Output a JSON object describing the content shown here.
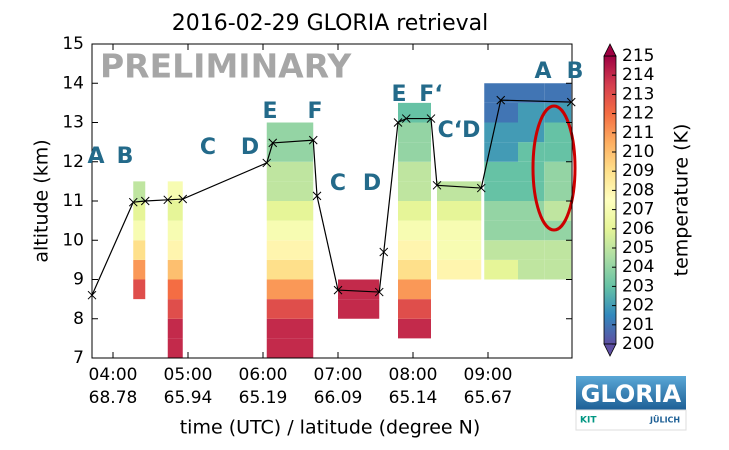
{
  "chart_data": {
    "type": "curtain",
    "title": "2016-02-29 GLORIA retrieval",
    "watermark": "PRELIMINARY",
    "xlabel": "time (UTC) / latitude (degree N)",
    "ylabel": "altitude (km)",
    "xlim": [
      3.72,
      10.12
    ],
    "ylim": [
      7,
      15
    ],
    "yticks": [
      7,
      8,
      9,
      10,
      11,
      12,
      13,
      14,
      15
    ],
    "xticks": [
      {
        "value": 4,
        "label": "04:00"
      },
      {
        "value": 5,
        "label": "05:00"
      },
      {
        "value": 6,
        "label": "06:00"
      },
      {
        "value": 7,
        "label": "07:00"
      },
      {
        "value": 8,
        "label": "08:00"
      },
      {
        "value": 9,
        "label": "09:00"
      }
    ],
    "xtick_latitudes": [
      "68.78",
      "65.94",
      "65.19",
      "66.09",
      "65.14",
      "65.67"
    ],
    "flight_track": {
      "color": "#000000",
      "x": [
        3.72,
        4.27,
        4.43,
        4.73,
        4.93,
        6.05,
        6.13,
        6.67,
        6.72,
        7.0,
        7.55,
        7.61,
        7.8,
        7.91,
        8.24,
        8.32,
        8.91,
        9.17,
        10.11
      ],
      "y": [
        8.6,
        10.97,
        11.0,
        11.03,
        11.05,
        11.97,
        12.48,
        12.55,
        11.13,
        8.73,
        8.68,
        9.7,
        13.0,
        13.1,
        13.1,
        11.4,
        11.33,
        13.57,
        13.52
      ]
    },
    "heatmap": {
      "y_edges": [
        7,
        7.5,
        8,
        8.5,
        9,
        9.5,
        10,
        10.5,
        11,
        11.5,
        12,
        12.5,
        13,
        13.5,
        14
      ],
      "columns": [
        {
          "x": [
            4.27,
            4.43
          ],
          "z": [
            null,
            null,
            null,
            213,
            211,
            209,
            207,
            206,
            205,
            null,
            null,
            null,
            null,
            null
          ]
        },
        {
          "x": [
            4.73,
            4.93
          ],
          "z": [
            214,
            214,
            213,
            212,
            210,
            208,
            207,
            206,
            207,
            null,
            null,
            null,
            null,
            null
          ]
        },
        {
          "x": [
            6.05,
            6.67
          ],
          "z": [
            214,
            214,
            213,
            211,
            209,
            208,
            207,
            206,
            205,
            205,
            204,
            204,
            null,
            null
          ]
        },
        {
          "x": [
            7.0,
            7.55
          ],
          "z": [
            null,
            null,
            214,
            214,
            null,
            null,
            null,
            null,
            null,
            null,
            null,
            null,
            null,
            null
          ]
        },
        {
          "x": [
            7.8,
            8.24
          ],
          "z": [
            null,
            214,
            213,
            211,
            209,
            208,
            207,
            206,
            205,
            205,
            204,
            204,
            203,
            null
          ]
        },
        {
          "x": [
            8.32,
            8.91
          ],
          "z": [
            null,
            null,
            null,
            null,
            208,
            207,
            207,
            206,
            205,
            null,
            null,
            null,
            null,
            null
          ]
        },
        {
          "x": [
            8.95,
            9.4
          ],
          "z": [
            null,
            null,
            null,
            null,
            206,
            205,
            204,
            204,
            203,
            203,
            202,
            202,
            201,
            201
          ]
        },
        {
          "x": [
            9.4,
            9.75
          ],
          "z": [
            null,
            null,
            null,
            null,
            205,
            205,
            204,
            204,
            203,
            203,
            203,
            202,
            202,
            201
          ]
        },
        {
          "x": [
            9.75,
            10.11
          ],
          "z": [
            null,
            null,
            null,
            null,
            205,
            205,
            204,
            205,
            204,
            204,
            203,
            203,
            202,
            201
          ]
        }
      ]
    },
    "colorbar": {
      "label": "temperature (K)",
      "clim": [
        200,
        215
      ],
      "ticks": [
        200,
        201,
        202,
        203,
        204,
        205,
        206,
        207,
        208,
        209,
        210,
        211,
        212,
        213,
        214,
        215
      ],
      "colormap": [
        "#5e4fa2",
        "#3288bd",
        "#66c2a5",
        "#abdda4",
        "#e6f598",
        "#ffffbf",
        "#fee08b",
        "#fdae61",
        "#f46d43",
        "#d53e4f",
        "#9e0142"
      ]
    },
    "annotations": [
      "A",
      "B",
      "C",
      "D",
      "E",
      "F",
      "C",
      "D",
      "E",
      "F‘",
      "C‘D",
      "A",
      "B"
    ]
  },
  "logo": {
    "title": "GLORIA",
    "partner_1": "KIT",
    "partner_2": "JÜLICH"
  }
}
